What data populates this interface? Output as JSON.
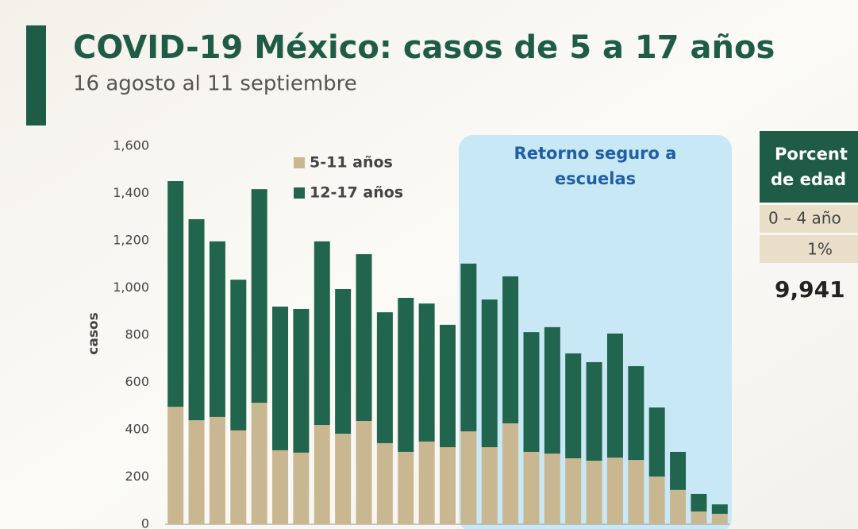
{
  "chart_data": {
    "type": "stacked_bar",
    "title": "COVID-19 México: casos de 5 a 17 años",
    "subtitle": "16 agosto al 11 septiembre",
    "y_label": "casos",
    "annotation": [
      "Retorno seguro a",
      "escuelas"
    ],
    "categories": [
      null,
      null,
      null,
      null,
      null,
      null,
      null,
      null,
      null,
      null,
      null,
      null,
      null,
      null,
      null,
      null,
      null,
      null,
      null,
      null,
      null,
      null,
      null,
      null,
      null,
      null,
      null
    ],
    "series": [
      {
        "name": "5-11 años",
        "color": "#c9b792",
        "values": [
          497,
          440,
          454,
          397,
          514,
          313,
          303,
          420,
          383,
          437,
          343,
          306,
          350,
          326,
          393,
          326,
          427,
          306,
          299,
          279,
          269,
          282,
          272,
          202,
          145,
          54,
          44
        ]
      },
      {
        "name": "12-17 años",
        "color": "#21654f",
        "values": [
          955,
          851,
          743,
          638,
          904,
          608,
          608,
          777,
          612,
          706,
          554,
          652,
          584,
          518,
          710,
          625,
          622,
          507,
          535,
          444,
          417,
          525,
          397,
          292,
          161,
          74,
          40
        ]
      }
    ],
    "ylim": [
      0,
      1600
    ],
    "yticks": [
      0,
      200,
      400,
      600,
      800,
      {
        "value": 1000,
        "label": "1,000"
      },
      {
        "value": 1200,
        "label": "1,200"
      },
      {
        "value": 1400,
        "label": "1,400"
      },
      {
        "value": 1600,
        "label": "1,600"
      }
    ],
    "side_panel": {
      "header": [
        "Porcent",
        "de edad"
      ],
      "group": "0 – 4 año",
      "percent": "1%",
      "total": "9,941"
    }
  }
}
